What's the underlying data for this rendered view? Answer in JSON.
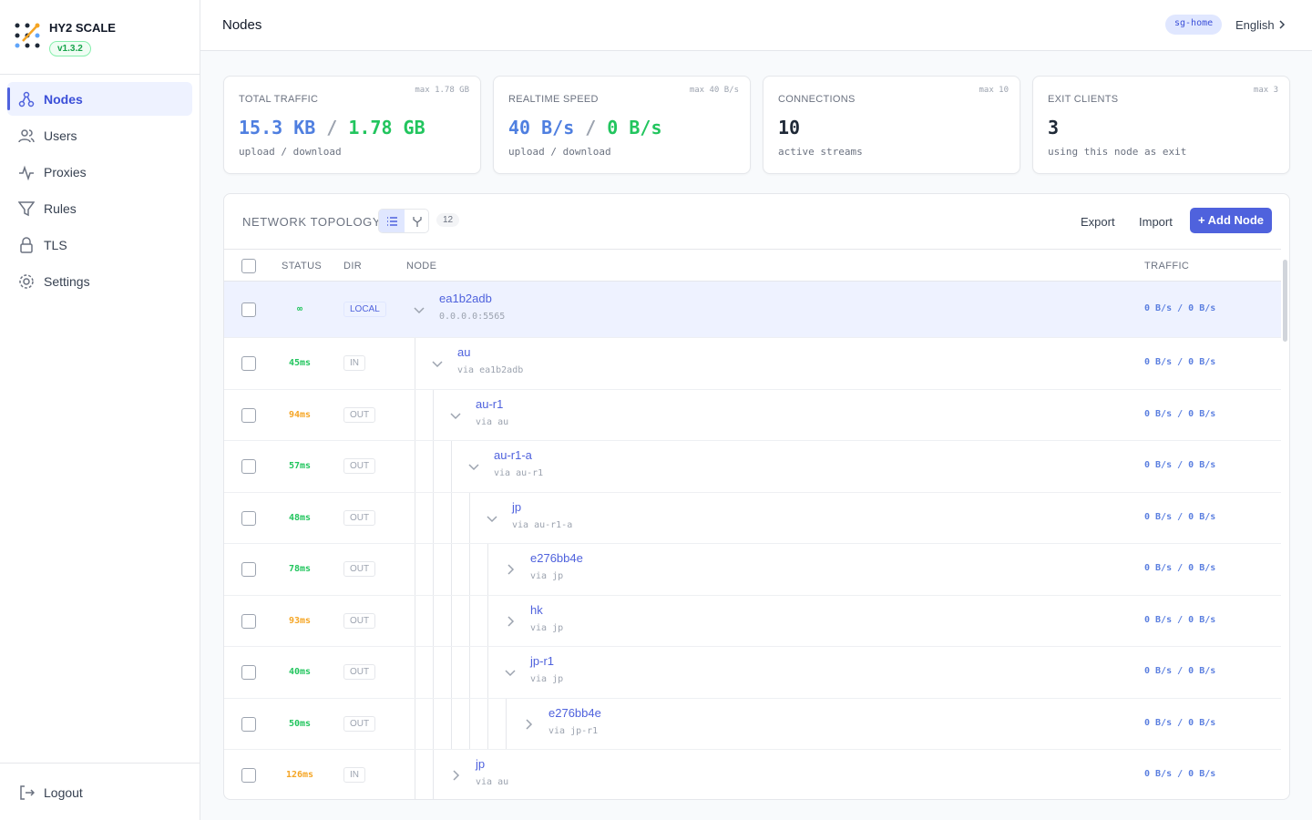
{
  "sidebar": {
    "brand": "HY2 SCALE",
    "version": "v1.3.2",
    "nav": [
      "Nodes",
      "Users",
      "Proxies",
      "Rules",
      "TLS",
      "Settings"
    ],
    "logout": "Logout"
  },
  "header": {
    "title": "Nodes",
    "badge": "sg-home",
    "language": "English"
  },
  "stats": [
    {
      "label": "TOTAL TRAFFIC",
      "max": "max 1.78 GB",
      "upload": "15.3 KB",
      "separator": "/",
      "download": "1.78 GB",
      "caption": "upload / download"
    },
    {
      "label": "REALTIME SPEED",
      "max": "max 40 B/s",
      "upload": "40 B/s",
      "separator": "/",
      "download": "0 B/s",
      "caption": "upload / download"
    },
    {
      "label": "CONNECTIONS",
      "max": "max 10",
      "value": "10",
      "caption": "active streams"
    },
    {
      "label": "EXIT CLIENTS",
      "max": "max 3",
      "value": "3",
      "caption": "using this node as exit"
    }
  ],
  "topology": {
    "title": "NETWORK TOPOLOGY",
    "count": "12",
    "export": "Export",
    "import": "Import",
    "add": "+ Add Node",
    "columns": [
      "STATUS",
      "DIR",
      "NODE",
      "TRAFFIC"
    ],
    "nodes": [
      {
        "status": "∞",
        "status_color": "#22c55e",
        "dir": "LOCAL",
        "name": "ea1b2adb",
        "sub": "0.0.0.0:5565",
        "traffic": "0 B/s / 0 B/s",
        "expanded": true,
        "children": [
          {
            "status": "45ms",
            "status_color": "#22c55e",
            "dir": "IN",
            "name": "au",
            "sub": "via ea1b2adb",
            "traffic": "0 B/s / 0 B/s",
            "expanded": true,
            "children": [
              {
                "status": "94ms",
                "status_color": "#f5a524",
                "dir": "OUT",
                "name": "au-r1",
                "sub": "via au",
                "traffic": "0 B/s / 0 B/s",
                "expanded": true,
                "children": [
                  {
                    "status": "57ms",
                    "status_color": "#22c55e",
                    "dir": "OUT",
                    "name": "au-r1-a",
                    "sub": "via au-r1",
                    "traffic": "0 B/s / 0 B/s",
                    "expanded": true,
                    "children": [
                      {
                        "status": "48ms",
                        "status_color": "#22c55e",
                        "dir": "OUT",
                        "name": "jp",
                        "sub": "via au-r1-a",
                        "traffic": "0 B/s / 0 B/s",
                        "expanded": true,
                        "children": [
                          {
                            "status": "78ms",
                            "status_color": "#22c55e",
                            "dir": "OUT",
                            "name": "e276bb4e",
                            "sub": "via jp",
                            "traffic": "0 B/s / 0 B/s",
                            "expanded": false,
                            "children": []
                          },
                          {
                            "status": "93ms",
                            "status_color": "#f5a524",
                            "dir": "OUT",
                            "name": "hk",
                            "sub": "via jp",
                            "traffic": "0 B/s / 0 B/s",
                            "expanded": false,
                            "children": []
                          },
                          {
                            "status": "40ms",
                            "status_color": "#22c55e",
                            "dir": "OUT",
                            "name": "jp-r1",
                            "sub": "via jp",
                            "traffic": "0 B/s / 0 B/s",
                            "expanded": true,
                            "children": [
                              {
                                "status": "50ms",
                                "status_color": "#22c55e",
                                "dir": "OUT",
                                "name": "e276bb4e",
                                "sub": "via jp-r1",
                                "traffic": "0 B/s / 0 B/s",
                                "expanded": false,
                                "children": []
                              }
                            ]
                          }
                        ]
                      }
                    ]
                  }
                ]
              },
              {
                "status": "126ms",
                "status_color": "#f5a524",
                "dir": "IN",
                "name": "jp",
                "sub": "via au",
                "traffic": "0 B/s / 0 B/s",
                "expanded": false,
                "children": []
              }
            ]
          }
        ]
      }
    ]
  }
}
